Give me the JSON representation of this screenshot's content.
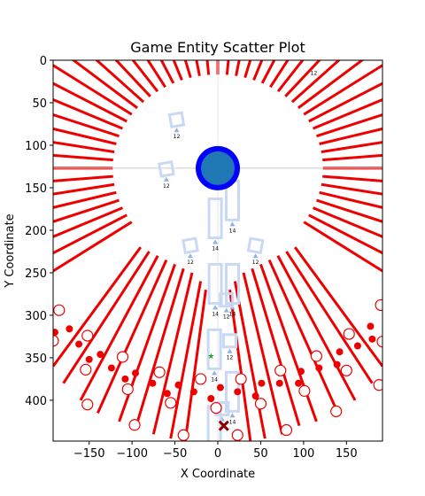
{
  "chart_data": {
    "type": "scatter",
    "title": "Game Entity Scatter Plot",
    "xlabel": "X Coordinate",
    "ylabel": "Y Coordinate",
    "xlim": [
      -192,
      192
    ],
    "ylim": [
      448,
      0
    ],
    "y_inverted": true,
    "xticks": [
      -150,
      -100,
      -50,
      0,
      50,
      100,
      150
    ],
    "yticks": [
      0,
      50,
      100,
      150,
      200,
      250,
      300,
      350,
      400
    ],
    "grid": false,
    "center_marker": {
      "x": 0,
      "y": 127,
      "color": "#1f77b4",
      "edge": "#0000ff"
    },
    "crosshair_y": 127,
    "goal_marker": {
      "x": 7,
      "y": 430,
      "color": "#8b0000"
    },
    "green_marker": {
      "x": -8,
      "y": 348,
      "color": "#2ca02c"
    },
    "top_label": {
      "x": 112,
      "y": 17,
      "text": "12"
    },
    "ray_angles_deg": [
      0,
      5,
      10,
      15,
      20,
      25,
      30,
      35,
      40,
      45,
      50,
      55,
      60,
      65,
      70,
      75,
      80,
      85,
      90,
      95,
      100,
      105,
      110,
      115,
      120,
      125,
      130,
      135,
      140,
      145,
      150,
      155,
      160,
      165,
      170,
      175,
      180,
      185,
      190,
      195,
      200,
      205,
      210,
      215,
      220,
      225,
      230,
      235,
      240,
      245,
      250,
      255,
      260,
      265,
      270,
      275,
      280,
      285,
      290,
      295,
      300,
      305,
      310,
      315,
      320,
      325,
      330,
      335,
      340,
      345,
      350,
      355
    ],
    "rays_inner_radius": 245,
    "rays_outer_radius": 500,
    "bottom_rays": [
      {
        "x0": -192,
        "y0": 360,
        "x1": -90,
        "y1": 220
      },
      {
        "x0": -180,
        "y0": 380,
        "x1": -80,
        "y1": 225
      },
      {
        "x0": -160,
        "y0": 400,
        "x1": -70,
        "y1": 230
      },
      {
        "x0": -140,
        "y0": 415,
        "x1": -60,
        "y1": 235
      },
      {
        "x0": -115,
        "y0": 425,
        "x1": -50,
        "y1": 240
      },
      {
        "x0": -95,
        "y0": 430,
        "x1": -40,
        "y1": 245
      },
      {
        "x0": -75,
        "y0": 440,
        "x1": -30,
        "y1": 250
      },
      {
        "x0": -55,
        "y0": 445,
        "x1": -20,
        "y1": 260
      },
      {
        "x0": -38,
        "y0": 448,
        "x1": -14,
        "y1": 270
      },
      {
        "x0": 38,
        "y0": 448,
        "x1": 14,
        "y1": 270
      },
      {
        "x0": 55,
        "y0": 445,
        "x1": 20,
        "y1": 260
      },
      {
        "x0": 75,
        "y0": 440,
        "x1": 30,
        "y1": 250
      },
      {
        "x0": 95,
        "y0": 430,
        "x1": 40,
        "y1": 245
      },
      {
        "x0": 115,
        "y0": 425,
        "x1": 50,
        "y1": 240
      },
      {
        "x0": 140,
        "y0": 415,
        "x1": 60,
        "y1": 235
      },
      {
        "x0": 160,
        "y0": 400,
        "x1": 70,
        "y1": 230
      },
      {
        "x0": 180,
        "y0": 380,
        "x1": 80,
        "y1": 225
      },
      {
        "x0": 192,
        "y0": 360,
        "x1": 90,
        "y1": 220
      }
    ],
    "open_circles": [
      {
        "x": -185,
        "y": 294
      },
      {
        "x": -192,
        "y": 330
      },
      {
        "x": -152,
        "y": 324
      },
      {
        "x": -154,
        "y": 364
      },
      {
        "x": -152,
        "y": 405
      },
      {
        "x": -111,
        "y": 349
      },
      {
        "x": -105,
        "y": 387
      },
      {
        "x": -97,
        "y": 429
      },
      {
        "x": -68,
        "y": 367
      },
      {
        "x": -55,
        "y": 403
      },
      {
        "x": -40,
        "y": 441
      },
      {
        "x": -20,
        "y": 375
      },
      {
        "x": -2,
        "y": 409
      },
      {
        "x": 23,
        "y": 441
      },
      {
        "x": 27,
        "y": 375
      },
      {
        "x": 50,
        "y": 404
      },
      {
        "x": 73,
        "y": 365
      },
      {
        "x": 80,
        "y": 435
      },
      {
        "x": 101,
        "y": 389
      },
      {
        "x": 115,
        "y": 348
      },
      {
        "x": 138,
        "y": 413
      },
      {
        "x": 153,
        "y": 322
      },
      {
        "x": 150,
        "y": 365
      },
      {
        "x": 190,
        "y": 288
      },
      {
        "x": 192,
        "y": 331
      },
      {
        "x": 188,
        "y": 382
      }
    ],
    "filled_dots": [
      {
        "x": -190,
        "y": 320
      },
      {
        "x": -173,
        "y": 316
      },
      {
        "x": -162,
        "y": 334
      },
      {
        "x": -150,
        "y": 352
      },
      {
        "x": -137,
        "y": 346
      },
      {
        "x": -124,
        "y": 362
      },
      {
        "x": -108,
        "y": 375
      },
      {
        "x": -96,
        "y": 368
      },
      {
        "x": -76,
        "y": 380
      },
      {
        "x": -59,
        "y": 392
      },
      {
        "x": -46,
        "y": 382
      },
      {
        "x": -28,
        "y": 390
      },
      {
        "x": -8,
        "y": 398
      },
      {
        "x": 3,
        "y": 385
      },
      {
        "x": 23,
        "y": 390
      },
      {
        "x": 44,
        "y": 395
      },
      {
        "x": 51,
        "y": 380
      },
      {
        "x": 72,
        "y": 380
      },
      {
        "x": 94,
        "y": 380
      },
      {
        "x": 97,
        "y": 366
      },
      {
        "x": 118,
        "y": 362
      },
      {
        "x": 139,
        "y": 358
      },
      {
        "x": 142,
        "y": 343
      },
      {
        "x": 163,
        "y": 336
      },
      {
        "x": 180,
        "y": 328
      },
      {
        "x": 178,
        "y": 313
      }
    ],
    "ghost_squares": [
      {
        "x": -48,
        "y": 70,
        "label": "12",
        "rot": -10
      },
      {
        "x": -60,
        "y": 128,
        "label": "12",
        "rot": -10
      },
      {
        "x": -3,
        "y": 186,
        "label": "14",
        "rot": 0,
        "tall": true
      },
      {
        "x": 17,
        "y": 165,
        "label": "14",
        "rot": 0,
        "tall": true
      },
      {
        "x": -32,
        "y": 218,
        "label": "12",
        "rot": -10
      },
      {
        "x": 44,
        "y": 218,
        "label": "12",
        "rot": 10
      },
      {
        "x": -3,
        "y": 263,
        "label": "14",
        "rot": 0,
        "tall": true
      },
      {
        "x": 17,
        "y": 263,
        "label": "14",
        "rot": 0,
        "tall": true
      },
      {
        "x": 10,
        "y": 282,
        "label": "12",
        "rot": 0
      },
      {
        "x": 14,
        "y": 330,
        "label": "12",
        "rot": 0
      },
      {
        "x": -4,
        "y": 340,
        "label": "14",
        "rot": 0,
        "tall": true
      },
      {
        "x": 5,
        "y": 410,
        "label": "12",
        "rot": 0
      },
      {
        "x": 17,
        "y": 390,
        "label": "14",
        "rot": 0,
        "tall": true
      },
      {
        "x": -4,
        "y": 430,
        "label": "14",
        "rot": 0,
        "tall": true
      }
    ]
  }
}
